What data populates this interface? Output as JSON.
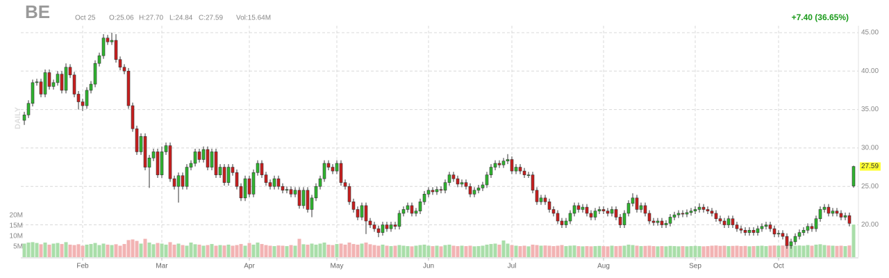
{
  "chart_data": {
    "type": "candlestick",
    "symbol": "BE",
    "date": "Oct 25",
    "ohlc_text": [
      "O:25.06",
      "H:27.70",
      "L:24.84",
      "C:27.59"
    ],
    "volume_text": "Vol:15.64M",
    "change": "+7.40 (36.65%)",
    "period": "DAILY",
    "categories": [
      null,
      null,
      null,
      null,
      null,
      null,
      null,
      null,
      null,
      null,
      null,
      null,
      null,
      null,
      "Feb",
      null,
      null,
      null,
      null,
      null,
      null,
      null,
      null,
      null,
      null,
      null,
      null,
      null,
      null,
      null,
      null,
      null,
      null,
      "Mar",
      null,
      null,
      null,
      null,
      null,
      null,
      null,
      null,
      null,
      null,
      null,
      null,
      null,
      null,
      null,
      null,
      null,
      null,
      null,
      null,
      "Apr",
      null,
      null,
      null,
      null,
      null,
      null,
      null,
      null,
      null,
      null,
      null,
      null,
      null,
      null,
      null,
      null,
      null,
      null,
      null,
      null,
      "May",
      null,
      null,
      null,
      null,
      null,
      null,
      null,
      null,
      null,
      null,
      null,
      null,
      null,
      null,
      null,
      null,
      null,
      null,
      null,
      null,
      null,
      "Jun",
      null,
      null,
      null,
      null,
      null,
      null,
      null,
      null,
      null,
      null,
      null,
      null,
      null,
      null,
      null,
      null,
      null,
      null,
      null,
      "Jul",
      null,
      null,
      null,
      null,
      null,
      null,
      null,
      null,
      null,
      null,
      null,
      null,
      null,
      null,
      null,
      null,
      null,
      null,
      null,
      null,
      null,
      "Aug",
      null,
      null,
      null,
      null,
      null,
      null,
      null,
      null,
      null,
      null,
      null,
      null,
      null,
      null,
      null,
      null,
      null,
      null,
      null,
      null,
      null,
      "Sep",
      null,
      null,
      null,
      null,
      null,
      null,
      null,
      null,
      null,
      null,
      null,
      null,
      null,
      null,
      null,
      null,
      null,
      null,
      null,
      "Oct",
      null,
      null,
      null,
      null,
      null,
      null,
      null,
      null,
      null,
      null,
      null,
      null,
      null,
      null,
      null,
      null,
      null,
      null
    ],
    "open": [
      33.6,
      34.3,
      35.8,
      38.5,
      38.6,
      37.0,
      39.8,
      38.0,
      38.5,
      39.6,
      37.5,
      40.5,
      39.5,
      37.0,
      36.0,
      35.5,
      37.5,
      38.3,
      41.0,
      42.0,
      44.3,
      43.8,
      44.0,
      41.5,
      40.5,
      40.0,
      35.5,
      32.5,
      29.5,
      31.5,
      27.5,
      28.7,
      29.5,
      26.5,
      29.5,
      30.3,
      26.0,
      25.0,
      26.4,
      25.0,
      27.5,
      28.0,
      29.5,
      28.5,
      29.8,
      27.5,
      29.5,
      26.5,
      27.5,
      25.5,
      27.5,
      26.8,
      25.0,
      23.5,
      26.0,
      24.0,
      26.8,
      28.0,
      26.5,
      25.5,
      25.0,
      26.0,
      25.0,
      24.5,
      24.6,
      24.0,
      24.5,
      22.5,
      24.5,
      22.0,
      23.5,
      25.0,
      26.0,
      28.0,
      27.5,
      27.0,
      28.0,
      25.5,
      25.0,
      23.0,
      22.0,
      21.0,
      22.5,
      20.5,
      20.0,
      19.5,
      19.0,
      20.0,
      19.5,
      20.0,
      19.8,
      21.5,
      22.0,
      22.5,
      21.5,
      21.8,
      23.0,
      24.0,
      24.5,
      24.3,
      24.6,
      24.5,
      25.5,
      26.5,
      26.0,
      25.3,
      25.5,
      25.0,
      24.0,
      24.5,
      24.8,
      25.2,
      26.5,
      27.5,
      28.0,
      27.8,
      28.3,
      28.5,
      27.0,
      27.5,
      27.0,
      26.5,
      26.5,
      24.5,
      23.0,
      23.5,
      23.0,
      22.0,
      21.5,
      20.5,
      20.0,
      20.5,
      21.5,
      22.5,
      22.0,
      22.3,
      21.5,
      21.0,
      21.8,
      22.0,
      21.8,
      21.5,
      22.0,
      21.0,
      20.0,
      21.5,
      22.8,
      23.5,
      22.0,
      22.5,
      21.5,
      20.5,
      20.3,
      20.5,
      20.0,
      20.2,
      21.0,
      21.3,
      21.5,
      21.4,
      21.6,
      21.8,
      22.0,
      22.3,
      22.0,
      21.8,
      21.5,
      20.8,
      20.5,
      20.0,
      20.8,
      20.0,
      19.5,
      19.3,
      19.0,
      19.3,
      19.0,
      19.5,
      19.8,
      20.0,
      19.5,
      18.8,
      18.9,
      18.5,
      17.3,
      17.8,
      18.5,
      19.0,
      19.3,
      19.8,
      19.5,
      20.8,
      22.0,
      22.3,
      21.5,
      21.8,
      21.5,
      21.0,
      21.2,
      25.06
    ],
    "high": [
      34.7,
      36.2,
      38.9,
      39.0,
      39.0,
      40.2,
      40.2,
      38.9,
      40.0,
      40.0,
      41.0,
      40.9,
      39.9,
      37.4,
      36.4,
      37.9,
      38.7,
      41.4,
      42.4,
      44.8,
      44.7,
      45.0,
      44.8,
      41.9,
      40.9,
      40.4,
      35.9,
      32.9,
      31.9,
      31.9,
      29.1,
      29.9,
      29.9,
      30.2,
      30.7,
      30.7,
      26.4,
      26.8,
      26.8,
      27.9,
      28.4,
      29.9,
      29.9,
      30.2,
      30.2,
      29.9,
      29.9,
      27.9,
      27.9,
      27.9,
      27.9,
      27.2,
      25.4,
      26.4,
      26.4,
      27.2,
      28.4,
      28.4,
      26.9,
      25.9,
      26.4,
      26.4,
      25.4,
      25.0,
      25.0,
      24.9,
      24.9,
      24.9,
      24.9,
      23.9,
      25.4,
      26.4,
      28.4,
      28.4,
      27.9,
      28.4,
      28.4,
      25.9,
      25.4,
      23.4,
      22.4,
      22.9,
      22.9,
      20.9,
      20.4,
      19.9,
      20.4,
      20.4,
      20.4,
      20.4,
      21.9,
      22.4,
      22.9,
      22.9,
      22.2,
      23.4,
      24.4,
      24.9,
      24.9,
      25.0,
      25.0,
      25.9,
      26.9,
      26.9,
      26.4,
      25.9,
      25.9,
      25.4,
      24.9,
      25.2,
      25.6,
      26.9,
      27.9,
      28.4,
      28.4,
      28.7,
      29.2,
      28.9,
      27.9,
      27.9,
      27.4,
      26.9,
      26.9,
      24.9,
      23.9,
      23.9,
      23.4,
      22.4,
      21.9,
      20.9,
      20.9,
      21.9,
      22.9,
      22.9,
      22.7,
      22.7,
      21.9,
      22.2,
      22.4,
      22.4,
      22.2,
      22.4,
      22.4,
      21.4,
      21.9,
      23.2,
      24.1,
      23.9,
      22.9,
      22.9,
      21.9,
      20.9,
      20.9,
      20.9,
      20.6,
      21.4,
      21.7,
      21.9,
      21.9,
      22.0,
      22.2,
      22.4,
      22.8,
      22.7,
      22.4,
      22.2,
      21.9,
      21.2,
      20.9,
      21.2,
      21.2,
      20.4,
      19.9,
      19.7,
      19.7,
      19.7,
      19.9,
      20.2,
      20.4,
      20.4,
      19.9,
      19.3,
      19.3,
      18.9,
      18.2,
      18.9,
      19.4,
      19.7,
      20.2,
      20.2,
      21.2,
      22.4,
      22.7,
      22.7,
      22.2,
      22.2,
      21.9,
      21.6,
      21.6,
      27.7
    ],
    "low": [
      33.0,
      33.9,
      35.4,
      38.1,
      36.6,
      36.6,
      37.6,
      37.6,
      38.1,
      37.1,
      37.1,
      39.1,
      36.6,
      35.0,
      34.8,
      35.1,
      37.1,
      37.9,
      40.6,
      41.6,
      43.4,
      43.4,
      41.1,
      40.1,
      39.6,
      35.1,
      32.1,
      29.1,
      29.1,
      27.1,
      24.8,
      28.3,
      26.1,
      26.1,
      29.1,
      25.6,
      24.6,
      22.9,
      24.6,
      24.6,
      27.1,
      27.6,
      28.1,
      28.1,
      27.1,
      27.1,
      26.1,
      26.1,
      25.1,
      25.1,
      26.4,
      24.6,
      23.1,
      23.1,
      23.6,
      23.6,
      26.4,
      26.1,
      25.1,
      24.6,
      24.6,
      24.6,
      24.1,
      24.1,
      23.6,
      23.6,
      22.1,
      22.1,
      21.6,
      21.0,
      23.1,
      24.6,
      25.6,
      27.1,
      26.6,
      26.6,
      25.1,
      24.6,
      22.6,
      21.6,
      20.6,
      20.6,
      18.8,
      19.6,
      19.1,
      18.4,
      18.6,
      19.1,
      19.1,
      19.4,
      19.4,
      21.1,
      21.6,
      21.1,
      21.1,
      21.4,
      22.6,
      23.6,
      23.9,
      23.9,
      24.1,
      24.1,
      25.1,
      25.6,
      24.9,
      24.9,
      24.6,
      23.6,
      23.6,
      24.1,
      24.4,
      24.8,
      26.1,
      27.1,
      27.4,
      27.4,
      27.9,
      26.6,
      26.6,
      26.6,
      26.1,
      26.1,
      24.1,
      22.6,
      22.6,
      22.6,
      21.6,
      21.1,
      20.1,
      19.6,
      19.6,
      20.1,
      21.1,
      21.6,
      21.6,
      21.1,
      20.6,
      20.6,
      21.4,
      21.4,
      21.1,
      21.1,
      20.6,
      19.6,
      19.6,
      21.1,
      22.4,
      21.6,
      21.6,
      21.1,
      20.1,
      19.9,
      19.9,
      19.6,
      19.6,
      19.8,
      20.6,
      20.9,
      21.0,
      21.0,
      21.2,
      21.4,
      21.6,
      21.6,
      21.4,
      21.1,
      20.4,
      20.1,
      19.6,
      19.6,
      19.6,
      19.1,
      18.9,
      18.6,
      18.6,
      18.6,
      18.6,
      19.1,
      19.4,
      19.1,
      18.4,
      18.4,
      18.1,
      16.9,
      16.9,
      17.4,
      18.1,
      18.6,
      18.9,
      19.1,
      19.1,
      20.4,
      21.6,
      21.1,
      21.1,
      21.1,
      20.6,
      20.6,
      19.8,
      24.84
    ],
    "close": [
      34.3,
      35.8,
      38.5,
      38.6,
      37.0,
      39.8,
      38.0,
      38.5,
      39.6,
      37.5,
      40.5,
      39.5,
      37.0,
      36.0,
      35.5,
      37.5,
      38.3,
      41.0,
      42.0,
      44.3,
      43.8,
      44.0,
      41.5,
      40.5,
      40.0,
      35.5,
      32.5,
      29.5,
      31.5,
      27.5,
      28.7,
      29.5,
      26.5,
      29.5,
      30.3,
      26.0,
      25.0,
      26.4,
      25.0,
      27.5,
      28.0,
      29.5,
      28.5,
      29.8,
      27.5,
      29.5,
      26.5,
      27.5,
      25.5,
      27.5,
      26.8,
      25.0,
      23.5,
      26.0,
      24.0,
      26.8,
      28.0,
      26.5,
      25.5,
      25.0,
      26.0,
      25.0,
      24.5,
      24.6,
      24.0,
      24.5,
      22.5,
      24.5,
      22.0,
      23.5,
      25.0,
      26.0,
      28.0,
      27.5,
      27.0,
      28.0,
      25.5,
      25.0,
      23.0,
      22.0,
      21.0,
      22.5,
      20.5,
      20.0,
      19.5,
      19.0,
      20.0,
      19.5,
      20.0,
      19.8,
      21.5,
      22.0,
      22.5,
      21.5,
      21.8,
      23.0,
      24.0,
      24.5,
      24.3,
      24.6,
      24.5,
      25.5,
      26.5,
      26.0,
      25.3,
      25.5,
      25.0,
      24.0,
      24.5,
      24.8,
      25.2,
      26.5,
      27.5,
      28.0,
      27.8,
      28.3,
      28.5,
      27.0,
      27.5,
      27.0,
      26.5,
      26.5,
      24.5,
      23.0,
      23.5,
      23.0,
      22.0,
      21.5,
      20.5,
      20.0,
      20.5,
      21.5,
      22.5,
      22.0,
      22.3,
      21.5,
      21.0,
      21.8,
      22.0,
      21.8,
      21.5,
      22.0,
      21.0,
      20.0,
      21.5,
      22.8,
      23.5,
      22.0,
      22.5,
      21.5,
      20.5,
      20.3,
      20.5,
      20.0,
      20.2,
      21.0,
      21.3,
      21.5,
      21.4,
      21.6,
      21.8,
      22.0,
      22.3,
      22.0,
      21.8,
      21.5,
      20.8,
      20.5,
      20.0,
      20.8,
      20.0,
      19.5,
      19.3,
      19.0,
      19.3,
      19.0,
      19.5,
      19.8,
      20.0,
      19.5,
      18.8,
      18.9,
      18.5,
      17.3,
      17.8,
      18.5,
      19.0,
      19.3,
      19.8,
      19.5,
      20.8,
      22.0,
      22.3,
      21.5,
      21.8,
      21.5,
      21.0,
      21.2,
      20.19,
      27.59
    ],
    "volume": [
      6.5,
      7.0,
      7.2,
      6.8,
      6.2,
      7.0,
      6.0,
      6.5,
      6.8,
      6.3,
      7.2,
      6.0,
      5.8,
      6.2,
      5.5,
      6.0,
      6.3,
      6.8,
      5.8,
      6.5,
      6.0,
      5.8,
      6.2,
      5.5,
      6.3,
      8.2,
      8.5,
      7.8,
      6.5,
      8.8,
      7.0,
      6.2,
      6.8,
      6.5,
      6.0,
      7.2,
      6.0,
      6.5,
      5.8,
      5.5,
      7.0,
      6.2,
      6.0,
      5.5,
      5.8,
      6.3,
      5.5,
      5.8,
      5.6,
      6.0,
      5.5,
      5.8,
      6.3,
      5.5,
      6.8,
      6.0,
      7.0,
      6.3,
      5.8,
      5.5,
      5.3,
      5.6,
      5.5,
      5.3,
      5.8,
      5.5,
      8.8,
      6.2,
      6.0,
      6.5,
      6.0,
      6.5,
      7.0,
      6.0,
      5.8,
      6.3,
      6.5,
      6.0,
      7.0,
      6.3,
      6.0,
      6.5,
      7.0,
      6.2,
      5.8,
      5.5,
      6.0,
      5.5,
      5.3,
      5.5,
      5.8,
      5.5,
      5.3,
      5.2,
      5.5,
      5.8,
      6.0,
      5.5,
      5.3,
      5.5,
      5.2,
      5.8,
      6.0,
      5.5,
      5.3,
      5.5,
      5.3,
      5.5,
      5.2,
      5.3,
      5.5,
      6.0,
      6.3,
      6.5,
      6.0,
      8.0,
      6.5,
      5.8,
      5.5,
      5.3,
      5.5,
      5.2,
      6.0,
      5.8,
      5.5,
      5.6,
      5.5,
      5.3,
      5.5,
      5.8,
      5.3,
      5.5,
      5.6,
      5.3,
      5.2,
      5.3,
      5.2,
      5.3,
      5.4,
      5.3,
      5.2,
      5.5,
      5.3,
      5.4,
      5.5,
      6.0,
      5.8,
      5.5,
      5.3,
      5.4,
      5.5,
      5.3,
      5.2,
      5.3,
      5.2,
      5.4,
      5.3,
      5.2,
      5.3,
      5.2,
      5.3,
      5.4,
      5.3,
      5.2,
      5.3,
      5.5,
      5.6,
      5.4,
      5.5,
      5.3,
      5.4,
      5.5,
      5.3,
      5.4,
      5.2,
      5.3,
      5.4,
      5.5,
      5.3,
      5.5,
      5.6,
      5.5,
      5.6,
      6.5,
      5.8,
      5.5,
      5.6,
      5.5,
      5.8,
      5.5,
      6.0,
      6.2,
      5.8,
      5.6,
      5.5,
      5.4,
      5.5,
      5.3,
      5.6,
      15.64
    ],
    "ylim": [
      15.8,
      45.9
    ],
    "yticks": [
      {
        "value": 20,
        "label": "20.00"
      },
      {
        "value": 25,
        "label": "25.00"
      },
      {
        "value": 30,
        "label": "30.00"
      },
      {
        "value": 35,
        "label": "35.00"
      },
      {
        "value": 40,
        "label": "40.00"
      },
      {
        "value": 45,
        "label": "45.00"
      }
    ],
    "volume_lim": [
      0,
      22
    ],
    "volume_ticks": [
      {
        "value": 5,
        "label": "5M"
      },
      {
        "value": 10,
        "label": "10M"
      },
      {
        "value": 15,
        "label": "15M"
      },
      {
        "value": 20,
        "label": "20M"
      }
    ],
    "grid": true,
    "up_color": "#2fb42f",
    "down_color": "#c81e1e",
    "volume_up_color": "#a9dea9",
    "volume_down_color": "#f2b3b3",
    "change_color": "#1a9a1a",
    "last_price_color": "#ffff33"
  }
}
